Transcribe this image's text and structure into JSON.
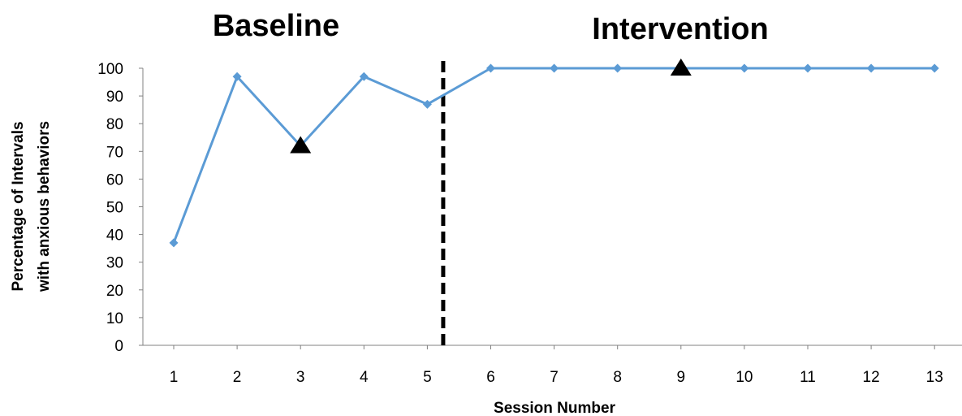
{
  "chart_data": {
    "type": "line",
    "phase_labels": [
      "Baseline",
      "Intervention"
    ],
    "ylabel_lines": [
      "Percentage  of Intervals",
      "with anxious behaviors"
    ],
    "xlabel": "Session Number",
    "categories": [
      "1",
      "2",
      "3",
      "4",
      "5",
      "6",
      "7",
      "8",
      "9",
      "10",
      "11",
      "12",
      "13"
    ],
    "x": [
      1,
      2,
      3,
      4,
      5,
      6,
      7,
      8,
      9,
      10,
      11,
      12,
      13
    ],
    "values": [
      37,
      97,
      72,
      97,
      87,
      100,
      100,
      100,
      100,
      100,
      100,
      100,
      100
    ],
    "ylim": [
      0,
      100
    ],
    "yticks": [
      0,
      10,
      20,
      30,
      40,
      50,
      60,
      70,
      80,
      90,
      100
    ],
    "phase_change_after_session": 5.25,
    "triangle_markers": [
      {
        "x": 3,
        "y": 72
      },
      {
        "x": 9,
        "y": 100
      }
    ],
    "line_color": "#5b9bd5",
    "marker_color": "#000000",
    "grid": false,
    "legend": "none"
  }
}
